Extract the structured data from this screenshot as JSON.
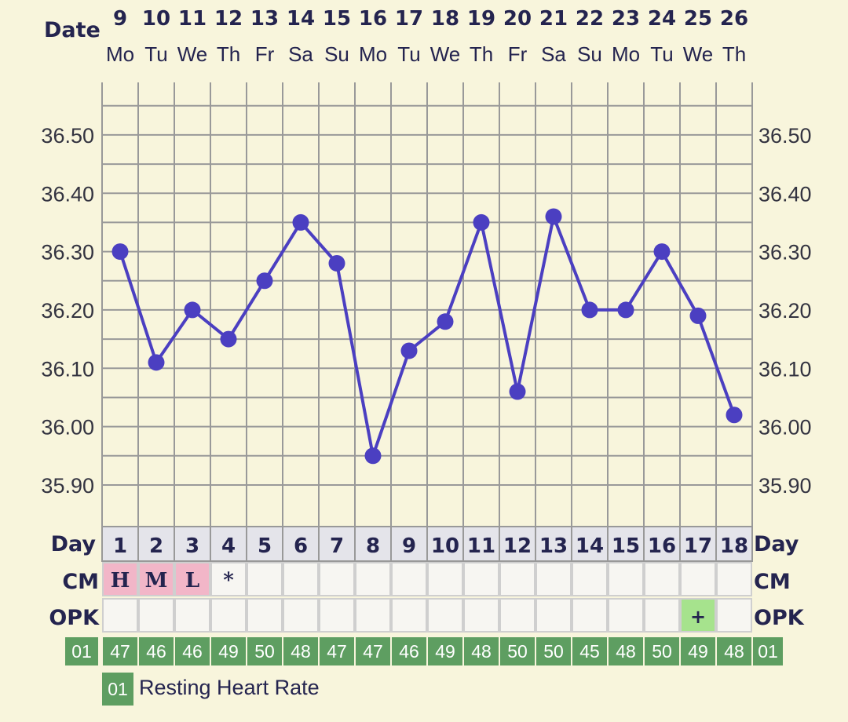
{
  "chart_data": {
    "type": "line",
    "header_label_date": "Date",
    "header_label_day": "Day",
    "header_label_cm": "CM",
    "header_label_opk": "OPK",
    "dates": [
      "9",
      "10",
      "11",
      "12",
      "13",
      "14",
      "15",
      "16",
      "17",
      "18",
      "19",
      "20",
      "21",
      "22",
      "23",
      "24",
      "25",
      "26"
    ],
    "weekdays": [
      "Mo",
      "Tu",
      "We",
      "Th",
      "Fr",
      "Sa",
      "Su",
      "Mo",
      "Tu",
      "We",
      "Th",
      "Fr",
      "Sa",
      "Su",
      "Mo",
      "Tu",
      "We",
      "Th"
    ],
    "days": [
      "1",
      "2",
      "3",
      "4",
      "5",
      "6",
      "7",
      "8",
      "9",
      "10",
      "11",
      "12",
      "13",
      "14",
      "15",
      "16",
      "17",
      "18"
    ],
    "temperatures": [
      36.3,
      36.11,
      36.2,
      36.15,
      36.25,
      36.35,
      36.28,
      35.95,
      36.13,
      36.18,
      36.35,
      36.06,
      36.36,
      36.2,
      36.2,
      36.3,
      36.19,
      36.02
    ],
    "y_tick_labels": [
      "36.50",
      "36.40",
      "36.30",
      "36.20",
      "36.10",
      "36.00",
      "35.90"
    ],
    "y_ticks": [
      36.5,
      36.4,
      36.3,
      36.2,
      36.1,
      36.0,
      35.9
    ],
    "ylim": [
      35.83,
      36.59
    ],
    "cm": [
      "H",
      "M",
      "L",
      "*",
      "",
      "",
      "",
      "",
      "",
      "",
      "",
      "",
      "",
      "",
      "",
      "",
      "",
      ""
    ],
    "cm_highlighted": [
      true,
      true,
      true,
      false,
      false,
      false,
      false,
      false,
      false,
      false,
      false,
      false,
      false,
      false,
      false,
      false,
      false,
      false
    ],
    "opk": [
      "",
      "",
      "",
      "",
      "",
      "",
      "",
      "",
      "",
      "",
      "",
      "",
      "",
      "",
      "",
      "",
      "+",
      ""
    ],
    "resting_heart_rate": [
      "47",
      "46",
      "46",
      "49",
      "50",
      "48",
      "47",
      "47",
      "46",
      "49",
      "48",
      "50",
      "50",
      "45",
      "48",
      "50",
      "49",
      "48"
    ],
    "hr_code": "01",
    "legend_code": "01",
    "legend_label": "Resting Heart Rate",
    "colors": {
      "background": "#f8f5dc",
      "line": "#4b3fc1",
      "grid": "#999999",
      "cm_highlight": "#f2b6c8",
      "opk_positive": "#a6e38d",
      "hr_box": "#5e9e61",
      "day_row": "#e4e4ea"
    }
  }
}
